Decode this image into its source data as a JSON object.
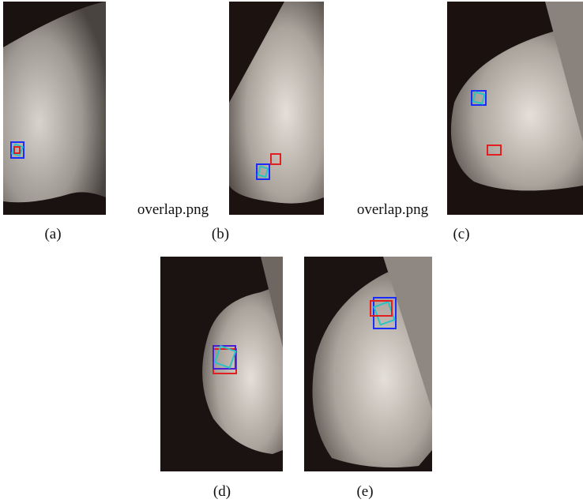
{
  "panels": [
    {
      "caption": "(a)"
    },
    {
      "caption": "(b)",
      "placeholder": "overlap.png"
    },
    {
      "caption": "(c)",
      "placeholder": "overlap.png"
    },
    {
      "caption": "(d)"
    },
    {
      "caption": "(e)"
    }
  ]
}
